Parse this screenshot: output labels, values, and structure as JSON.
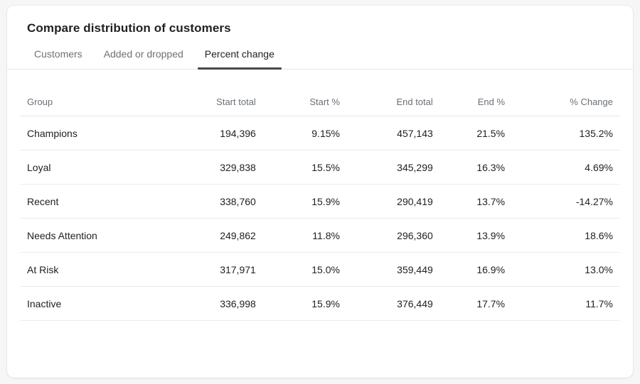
{
  "colors": {
    "page_background": "#f6f6f7",
    "card_background": "#ffffff",
    "title_text": "#1f2124",
    "tab_inactive_text": "#6d7175",
    "tab_active_text": "#202223",
    "tab_active_underline": "#47494b",
    "header_text": "#6b7076",
    "cell_text": "#202223",
    "divider": "#eaebed"
  },
  "card": {
    "title": "Compare distribution of customers",
    "tabs": [
      {
        "label": "Customers",
        "active": false
      },
      {
        "label": "Added or dropped",
        "active": false
      },
      {
        "label": "Percent change",
        "active": true
      }
    ],
    "table": {
      "columns": [
        "Group",
        "Start total",
        "Start %",
        "End total",
        "End %",
        "% Change"
      ],
      "rows": [
        {
          "group": "Champions",
          "start_total": "194,396",
          "start_pct": "9.15%",
          "end_total": "457,143",
          "end_pct": "21.5%",
          "pct_change": "135.2%"
        },
        {
          "group": "Loyal",
          "start_total": "329,838",
          "start_pct": "15.5%",
          "end_total": "345,299",
          "end_pct": "16.3%",
          "pct_change": "4.69%"
        },
        {
          "group": "Recent",
          "start_total": "338,760",
          "start_pct": "15.9%",
          "end_total": "290,419",
          "end_pct": "13.7%",
          "pct_change": "-14.27%"
        },
        {
          "group": "Needs Attention",
          "start_total": "249,862",
          "start_pct": "11.8%",
          "end_total": "296,360",
          "end_pct": "13.9%",
          "pct_change": "18.6%"
        },
        {
          "group": "At Risk",
          "start_total": "317,971",
          "start_pct": "15.0%",
          "end_total": "359,449",
          "end_pct": "16.9%",
          "pct_change": "13.0%"
        },
        {
          "group": "Inactive",
          "start_total": "336,998",
          "start_pct": "15.9%",
          "end_total": "376,449",
          "end_pct": "17.7%",
          "pct_change": "11.7%"
        }
      ]
    }
  }
}
